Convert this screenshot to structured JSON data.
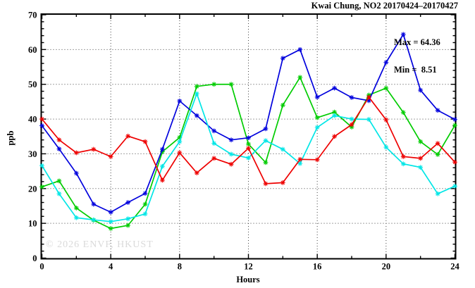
{
  "title": "Kwai Chung, NO2 20170424–20170427",
  "annotations": {
    "max_label": "Max = 64.36",
    "min_label": "Min =  8.51"
  },
  "watermark": "© 2026 ENVF, HKUST",
  "chart_data": {
    "type": "line",
    "title": "Kwai Chung, NO2 20170424-20170427",
    "xlabel": "Hours",
    "ylabel": "ppb",
    "xlim": [
      0,
      24
    ],
    "ylim": [
      0,
      70
    ],
    "x_major_ticks": [
      0,
      4,
      8,
      12,
      16,
      20,
      24
    ],
    "x_minor_step": 2,
    "y_major_ticks": [
      0,
      10,
      20,
      30,
      40,
      50,
      60,
      70
    ],
    "y_minor_step": 2,
    "grid": {
      "x_lines": [
        4,
        8,
        12,
        16,
        20
      ],
      "y_lines": [
        10,
        20,
        30,
        40,
        50,
        60
      ],
      "style": "dotted"
    },
    "legend": "none",
    "marker": "asterisk",
    "max": 64.36,
    "min": 8.51,
    "x": [
      0,
      1,
      2,
      3,
      4,
      5,
      6,
      7,
      8,
      9,
      10,
      11,
      12,
      13,
      14,
      15,
      16,
      17,
      18,
      19,
      20,
      21,
      22,
      23,
      24
    ],
    "series": [
      {
        "name": "green",
        "color": "#00cc00",
        "values": [
          20.5,
          22.2,
          14.4,
          10.9,
          8.51,
          9.4,
          15.5,
          30.6,
          34.7,
          49.4,
          50.0,
          50.0,
          32.8,
          27.5,
          44.0,
          52.0,
          40.4,
          42.0,
          37.7,
          46.9,
          48.9,
          41.9,
          33.5,
          29.8,
          38.2
        ]
      },
      {
        "name": "blue",
        "color": "#0000dd",
        "values": [
          38.1,
          31.4,
          24.4,
          15.5,
          13.2,
          16.0,
          18.6,
          31.3,
          45.2,
          41.0,
          36.6,
          34.0,
          34.6,
          37.2,
          57.5,
          60.0,
          46.3,
          48.9,
          46.2,
          45.3,
          56.3,
          64.36,
          48.3,
          42.5,
          39.9
        ]
      },
      {
        "name": "cyan",
        "color": "#00e6e6",
        "values": [
          26.6,
          18.5,
          11.6,
          11.0,
          10.5,
          11.3,
          12.7,
          26.4,
          33.5,
          47.3,
          33.0,
          29.9,
          28.8,
          33.8,
          31.3,
          27.2,
          37.6,
          41.0,
          40.0,
          39.9,
          31.9,
          27.1,
          26.1,
          18.5,
          20.7
        ]
      },
      {
        "name": "red",
        "color": "#ee0000",
        "values": [
          40.0,
          34.0,
          30.3,
          31.3,
          29.2,
          35.1,
          33.5,
          22.4,
          30.3,
          24.5,
          28.7,
          27.0,
          31.6,
          21.4,
          21.7,
          28.4,
          28.3,
          35.0,
          38.4,
          46.3,
          39.8,
          29.2,
          28.7,
          33.0,
          27.6
        ]
      }
    ]
  }
}
